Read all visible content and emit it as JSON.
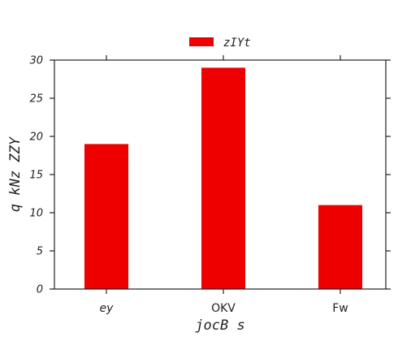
{
  "chart_data": {
    "type": "bar",
    "categories": [
      "ey",
      "OKV",
      "Fw"
    ],
    "series": [
      {
        "name": "zIYt",
        "values": [
          19,
          29,
          11
        ],
        "color": "#ee0000"
      }
    ],
    "xlabel": "jocB s",
    "ylabel": "q kNz ZZY",
    "ylim": [
      0,
      30
    ],
    "yticks": [
      "0",
      "5",
      "10",
      "15",
      "20",
      "25",
      "30"
    ],
    "legend_position": "top-center",
    "grid": false
  }
}
